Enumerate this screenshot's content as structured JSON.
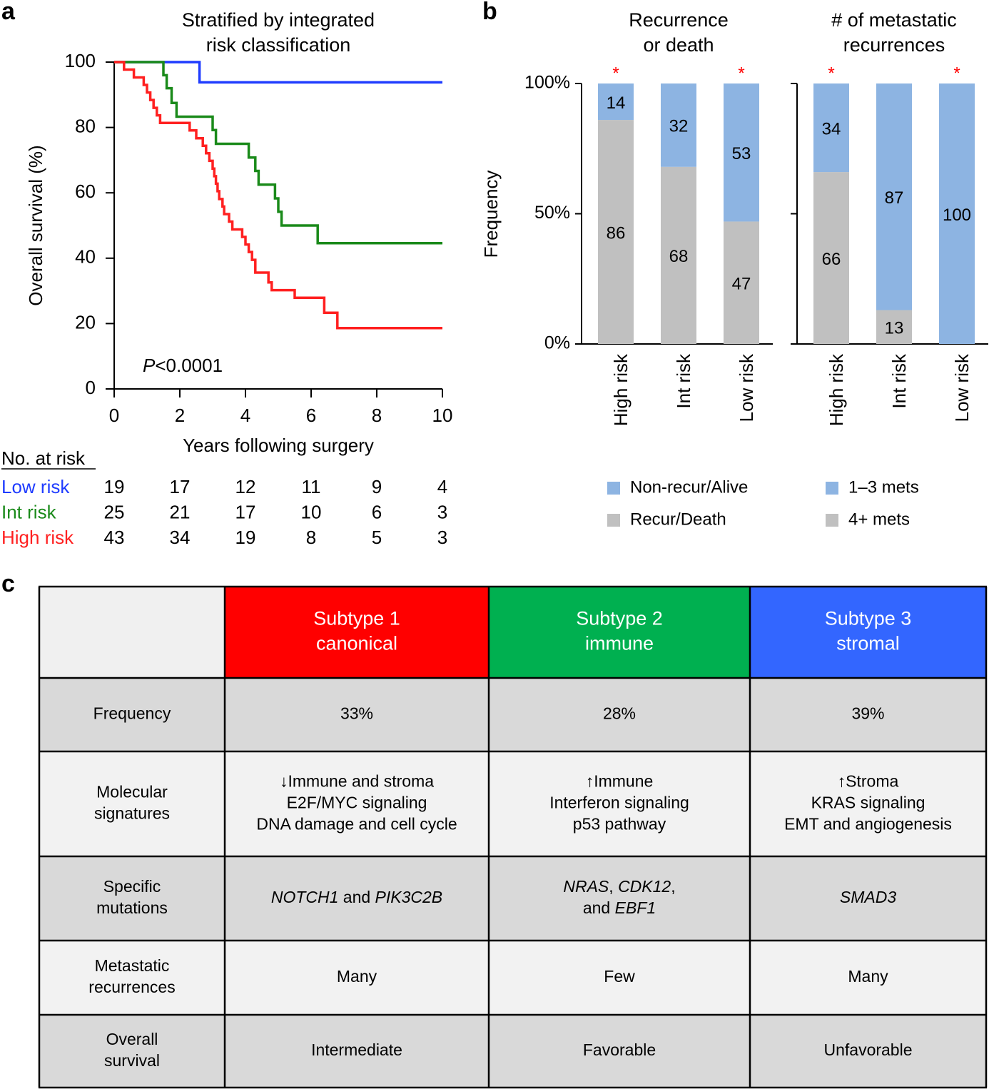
{
  "panels": [
    "a",
    "b",
    "c"
  ],
  "chart_data": [
    {
      "type": "line",
      "step": true,
      "title": [
        "Stratified by integrated",
        "risk classification"
      ],
      "xlabel": "Years following surgery",
      "ylabel": "Overall survival (%)",
      "xlim": [
        0,
        10
      ],
      "xticks": [
        0,
        2,
        4,
        6,
        8,
        10
      ],
      "ylim": [
        0,
        100
      ],
      "yticks": [
        0,
        20,
        40,
        60,
        80,
        100
      ],
      "annotation": "P<0.0001",
      "risk_table_title": "No. at risk",
      "series": [
        {
          "name": "Low risk",
          "color": "#1f3cff",
          "x": [
            0,
            2.6,
            10
          ],
          "values": [
            100,
            93.8,
            93.8
          ],
          "at_risk": [
            19,
            17,
            12,
            11,
            9,
            4
          ]
        },
        {
          "name": "Int risk",
          "color": "#1a8a1a",
          "x": [
            0,
            1.5,
            1.6,
            1.75,
            1.9,
            3.0,
            3.1,
            4.1,
            4.3,
            4.4,
            4.9,
            5.0,
            5.1,
            6.2,
            10
          ],
          "values": [
            100,
            96,
            92,
            87.5,
            83.3,
            79.2,
            75,
            70.8,
            66.7,
            62.5,
            58.3,
            54.2,
            50,
            44.6,
            44.6
          ],
          "at_risk": [
            25,
            21,
            17,
            10,
            6,
            3
          ]
        },
        {
          "name": "High risk",
          "color": "#ff2020",
          "x": [
            0,
            0.3,
            0.6,
            0.9,
            1.0,
            1.1,
            1.2,
            1.3,
            1.4,
            2.3,
            2.5,
            2.7,
            2.8,
            2.9,
            3.0,
            3.05,
            3.1,
            3.15,
            3.2,
            3.3,
            3.35,
            3.5,
            3.6,
            3.9,
            4.0,
            4.1,
            4.2,
            4.3,
            4.7,
            4.8,
            5.5,
            6.4,
            6.8,
            10
          ],
          "values": [
            100,
            97.7,
            95.3,
            93,
            90.7,
            88.4,
            86,
            83.7,
            81.4,
            79.1,
            76.7,
            74.4,
            72.1,
            69.8,
            67.4,
            65.1,
            62.8,
            60.5,
            58.1,
            55.8,
            53.5,
            51.2,
            48.8,
            46.5,
            44.2,
            41.9,
            39.5,
            35.6,
            32.6,
            30.2,
            27.9,
            23.3,
            18.6,
            18.6
          ],
          "at_risk": [
            43,
            34,
            19,
            8,
            5,
            3
          ]
        }
      ]
    },
    {
      "type": "bar",
      "stacked": true,
      "title": [
        "Recurrence",
        "or death"
      ],
      "ylabel": "Frequency",
      "categories": [
        "High risk",
        "Int risk",
        "Low risk"
      ],
      "ylim": [
        0,
        100
      ],
      "yticks": [
        {
          "value": 0,
          "label": "0%"
        },
        {
          "value": 50,
          "label": "50%"
        },
        {
          "value": 100,
          "label": "100%"
        }
      ],
      "tick_labels": true,
      "stars": [
        "*",
        null,
        "*"
      ],
      "star_color": "#ff0000",
      "series": [
        {
          "name": "Recur/Death",
          "color": "#c0c0c0",
          "values": [
            86,
            68,
            47
          ]
        },
        {
          "name": "Non-recur/Alive",
          "color": "#8db4e2",
          "values": [
            14,
            32,
            53
          ]
        }
      ]
    },
    {
      "type": "bar",
      "stacked": true,
      "title": [
        "# of metastatic",
        "recurrences"
      ],
      "categories": [
        "High risk",
        "Int risk",
        "Low risk"
      ],
      "ylim": [
        0,
        100
      ],
      "yticks": [
        0,
        50,
        100
      ],
      "tick_labels": false,
      "stars": [
        "*",
        null,
        "*"
      ],
      "star_color": "#ff0000",
      "series": [
        {
          "name": "4+ mets",
          "color": "#c0c0c0",
          "values": [
            66,
            13,
            0
          ]
        },
        {
          "name": "1–3 mets",
          "color": "#8db4e2",
          "values": [
            34,
            87,
            100
          ]
        }
      ]
    }
  ],
  "table": {
    "header": [
      {
        "lines": [
          "Subtype 1",
          "canonical"
        ],
        "color": "#ff0000"
      },
      {
        "lines": [
          "Subtype 2",
          "immune"
        ],
        "color": "#00b050"
      },
      {
        "lines": [
          "Subtype 3",
          "stromal"
        ],
        "color": "#3366ff"
      }
    ],
    "rows": [
      {
        "label": [
          "Frequency"
        ],
        "cells": [
          [
            [
              "33%"
            ]
          ],
          [
            [
              "28%"
            ]
          ],
          [
            [
              "39%"
            ]
          ]
        ]
      },
      {
        "label": [
          "Molecular",
          "signatures"
        ],
        "cells": [
          [
            [
              "↓Immune and stroma"
            ],
            [
              "E2F/MYC signaling"
            ],
            [
              "DNA damage and cell cycle"
            ]
          ],
          [
            [
              "↑Immune"
            ],
            [
              "Interferon signaling"
            ],
            [
              "p53 pathway"
            ]
          ],
          [
            [
              "↑Stroma"
            ],
            [
              "KRAS signaling"
            ],
            [
              "EMT and angiogenesis"
            ]
          ]
        ]
      },
      {
        "label": [
          "Specific",
          "mutations"
        ],
        "cells": [
          [
            [
              {
                "i": "NOTCH1"
              },
              " and ",
              {
                "i": "PIK3C2B"
              }
            ]
          ],
          [
            [
              {
                "i": "NRAS"
              },
              ", ",
              {
                "i": "CDK12"
              },
              ","
            ],
            [
              "and ",
              {
                "i": "EBF1"
              }
            ]
          ],
          [
            [
              {
                "i": "SMAD3"
              }
            ]
          ]
        ]
      },
      {
        "label": [
          "Metastatic",
          "recurrences"
        ],
        "cells": [
          [
            [
              "Many"
            ]
          ],
          [
            [
              "Few"
            ]
          ],
          [
            [
              "Many"
            ]
          ]
        ]
      },
      {
        "label": [
          "Overall",
          "survival"
        ],
        "cells": [
          [
            [
              "Intermediate"
            ]
          ],
          [
            [
              "Favorable"
            ]
          ],
          [
            [
              "Unfavorable"
            ]
          ]
        ]
      }
    ]
  }
}
